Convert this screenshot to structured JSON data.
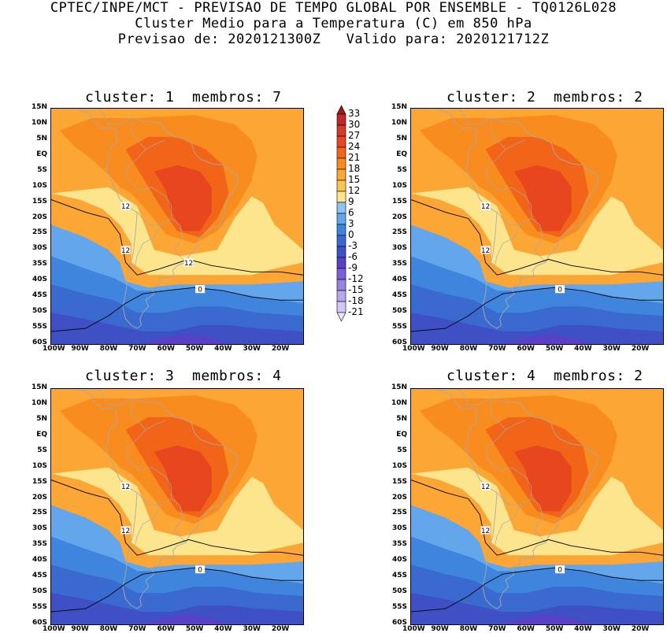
{
  "header": {
    "line1": "CPTEC/INPE/MCT - PREVISAO DE TEMPO GLOBAL POR ENSEMBLE - TQ0126L028",
    "line2": "Cluster Medio para a Temperatura (C) em 850 hPa",
    "line3": "Previsao de: 2020121300Z   Valido para: 2020121712Z"
  },
  "panels": [
    {
      "title": "cluster: 1  membros: 7",
      "contours": [
        "12",
        "12",
        "12",
        "0"
      ]
    },
    {
      "title": "cluster: 2  membros: 2",
      "contours": [
        "12",
        "12",
        "0"
      ]
    },
    {
      "title": "cluster: 3  membros: 4",
      "contours": [
        "12",
        "12",
        "0"
      ]
    },
    {
      "title": "cluster: 4  membros: 2",
      "contours": [
        "12",
        "12",
        "0"
      ]
    }
  ],
  "axes": {
    "lat_labels": [
      "15N",
      "10N",
      "5N",
      "EQ",
      "5S",
      "10S",
      "15S",
      "20S",
      "25S",
      "30S",
      "35S",
      "40S",
      "45S",
      "50S",
      "55S",
      "60S"
    ],
    "lon_labels": [
      "100W",
      "90W",
      "80W",
      "70W",
      "60W",
      "50W",
      "40W",
      "30W",
      "20W"
    ]
  },
  "colorbar": {
    "labels": [
      "33",
      "30",
      "27",
      "24",
      "21",
      "18",
      "15",
      "12",
      "9",
      "6",
      "3",
      "0",
      "-3",
      "-6",
      "-9",
      "-12",
      "-15",
      "-18",
      "-21"
    ],
    "colors": [
      "#a01818",
      "#c0282a",
      "#d43a2a",
      "#e8461e",
      "#f26418",
      "#f98c1f",
      "#fba635",
      "#fdc450",
      "#fde58e",
      "#90c2f4",
      "#64a6ec",
      "#4085dd",
      "#3a69cf",
      "#3f4fc4",
      "#5a3fc8",
      "#7860d6",
      "#9a82e0",
      "#b9a6ec",
      "#d6c6f5",
      "#ece2fb"
    ]
  }
}
